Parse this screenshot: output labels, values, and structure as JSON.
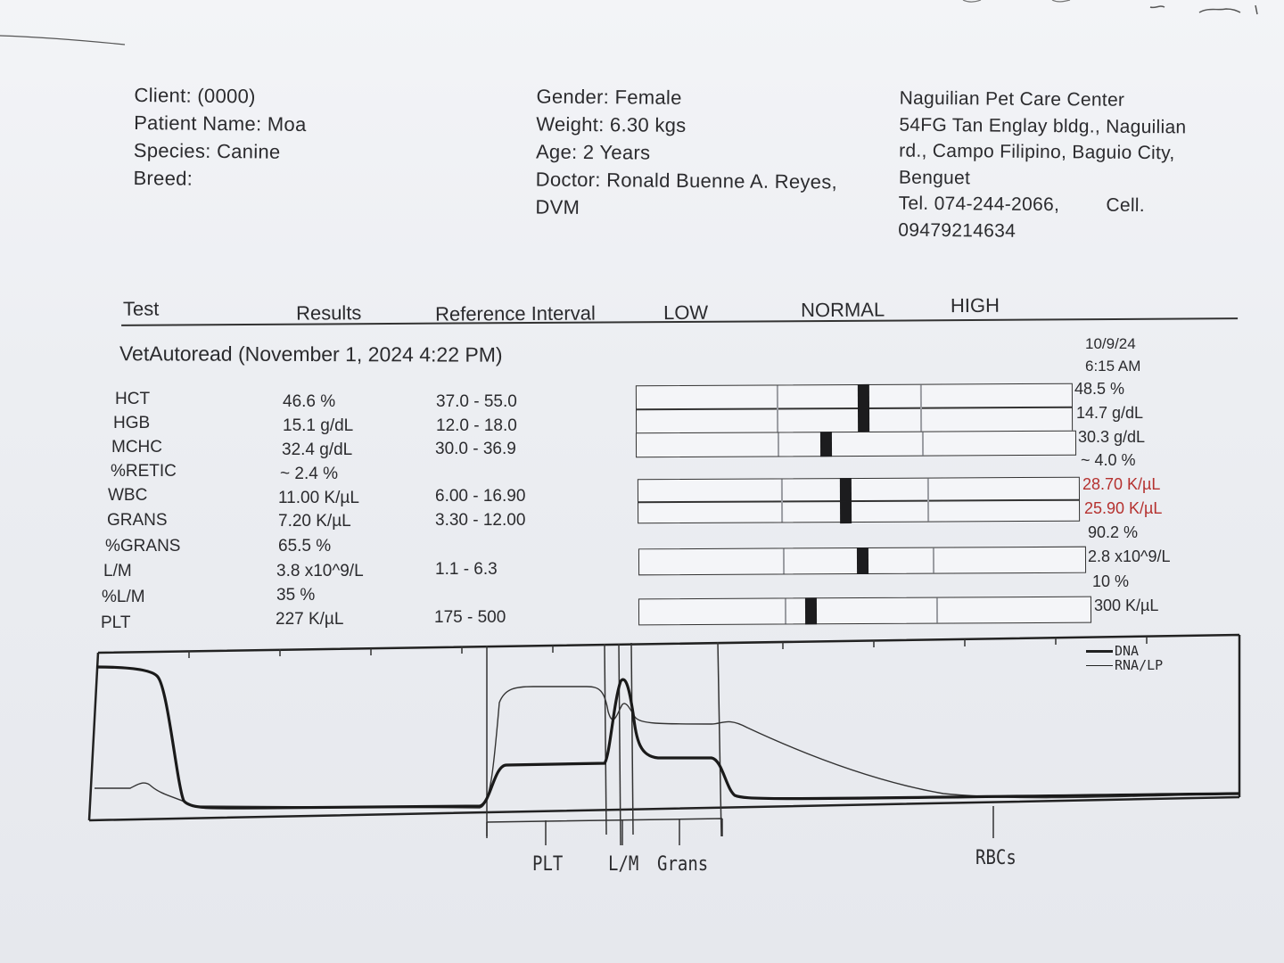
{
  "header": {
    "client": "Client:  (0000)",
    "patient": "Patient Name: Moa",
    "species": "Species: Canine",
    "breed": "Breed:",
    "gender": "Gender: Female",
    "weight": "Weight: 6.30 kgs",
    "age": "Age: 2 Years",
    "doctor": "Doctor: Ronald Buenne A. Reyes,",
    "doctor_suffix": "DVM",
    "clinic_name": "Naguilian Pet Care Center",
    "address_1": "54FG Tan Englay bldg., Naguilian",
    "address_2": "rd., Campo Filipino, Baguio City,",
    "address_3": "Benguet",
    "tel": "Tel. 074-244-2066,",
    "cell_label": "Cell.",
    "cell": "09479214634"
  },
  "table_header": {
    "test": "Test",
    "results": "Results",
    "reference": "Reference Interval",
    "low": "LOW",
    "normal": "NORMAL",
    "high": "HIGH"
  },
  "run": {
    "title": "VetAutoread (November 1, 2024 4:22 PM)",
    "prev_date": "10/9/24",
    "prev_time": "6:15 AM"
  },
  "rows": [
    {
      "name": "HCT",
      "result": "46.6 %",
      "ref": "37.0 - 55.0",
      "prev": "48.5 %",
      "marker": 0.52
    },
    {
      "name": "HGB",
      "result": "15.1 g/dL",
      "ref": "12.0 - 18.0",
      "prev": "14.7 g/dL",
      "marker": 0.52
    },
    {
      "name": "MCHC",
      "result": "32.4 g/dL",
      "ref": "30.0 - 36.9",
      "prev": "30.3 g/dL",
      "marker": 0.43
    },
    {
      "name": "%RETIC",
      "result": "~ 2.4 %",
      "ref": "",
      "prev": "~ 4.0 %"
    },
    {
      "name": "WBC",
      "result": "11.00 K/µL",
      "ref": "6.00 - 16.90",
      "prev": "28.70 K/µL",
      "prev_high": true,
      "marker": 0.47
    },
    {
      "name": "GRANS",
      "result": "7.20 K/µL",
      "ref": "3.30 - 12.00",
      "prev": "25.90 K/µL",
      "prev_high": true,
      "marker": 0.47
    },
    {
      "name": "%GRANS",
      "result": "65.5 %",
      "ref": "",
      "prev": "90.2 %"
    },
    {
      "name": "L/M",
      "result": "3.8 x10^9/L",
      "ref": "1.1 - 6.3",
      "prev": "2.8 x10^9/L",
      "marker": 0.5
    },
    {
      "name": "%L/M",
      "result": "35 %",
      "ref": "",
      "prev": "10 %"
    },
    {
      "name": "PLT",
      "result": "227 K/µL",
      "ref": "175 - 500",
      "prev": "300 K/µL",
      "marker": 0.38
    }
  ],
  "graph": {
    "legend": [
      "DNA",
      "RNA/LP"
    ],
    "regions": [
      "PLT",
      "L/M",
      "Grans",
      "RBCs"
    ]
  },
  "colors": {
    "high_value": "#b5312f",
    "ink": "#2b2b2e"
  }
}
